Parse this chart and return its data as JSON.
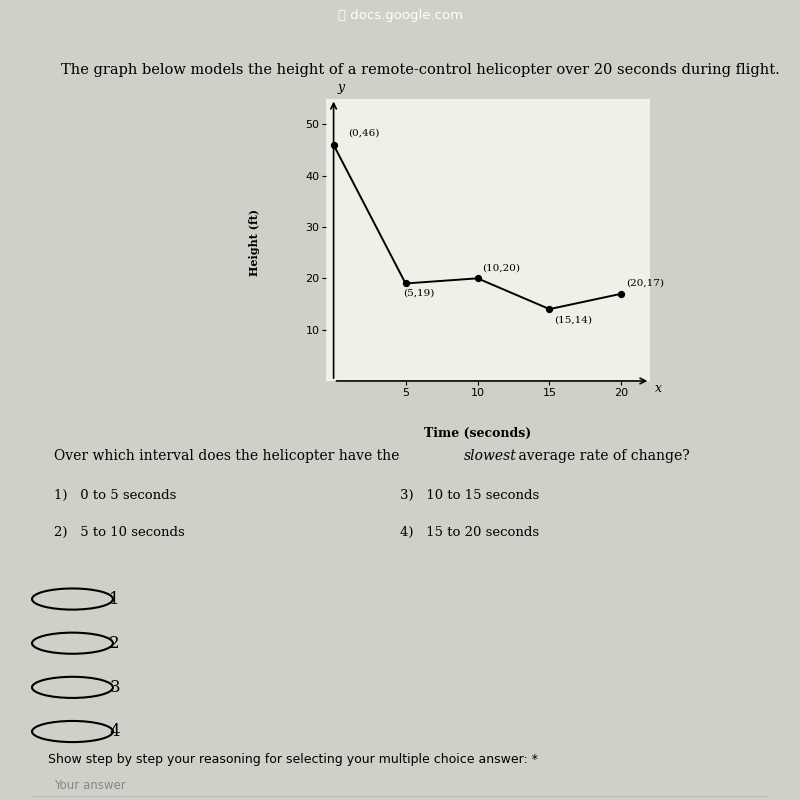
{
  "title": "The graph below models the height of a remote-control helicopter over 20 seconds during flight.",
  "points": [
    [
      0,
      46
    ],
    [
      5,
      19
    ],
    [
      10,
      20
    ],
    [
      15,
      14
    ],
    [
      20,
      17
    ]
  ],
  "point_labels": [
    "(0,46)",
    "(5,19)",
    "(10,20)",
    "(15,14)",
    "(20,17)"
  ],
  "xlabel_graph": "Time (seconds)",
  "ylabel_graph": "Height (ft)",
  "x_axis_label": "x",
  "y_axis_label": "y",
  "xlim": [
    -0.5,
    22
  ],
  "ylim": [
    0,
    55
  ],
  "xticks": [
    5,
    10,
    15,
    20
  ],
  "yticks": [
    10,
    20,
    30,
    40,
    50
  ],
  "question_plain": "Over which interval does the helicopter have the ",
  "question_italic": "slowest",
  "question_end": " average rate of change?",
  "choice1": "1)   0 to 5 seconds",
  "choice2": "2)   5 to 10 seconds",
  "choice3": "3)   10 to 15 seconds",
  "choice4": "4)   15 to 20 seconds",
  "radio_options": [
    "1",
    "2",
    "3",
    "4"
  ],
  "bottom_prompt": "Show step by step your reasoning for selecting your multiple choice answer: *",
  "bottom_placeholder": "Your answer",
  "browser_bar_color": "#555555",
  "bg_color": "#d0cfc8",
  "card1_color": "#f0efe8",
  "card2_color": "#f0efe8",
  "card3_color": "#f8f8f2",
  "line_color": "#000000",
  "dot_color": "#000000",
  "title_fontsize": 10.5,
  "label_fontsize": 9,
  "tick_fontsize": 8,
  "question_fontsize": 10,
  "choice_fontsize": 9.5,
  "radio_fontsize": 12
}
